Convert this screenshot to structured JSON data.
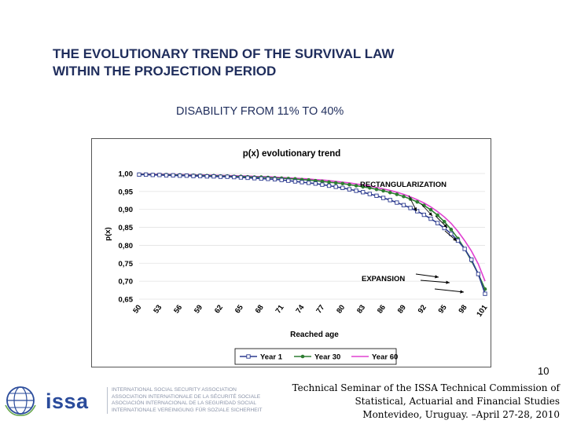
{
  "slide": {
    "title_line1": "THE EVOLUTIONARY TREND OF THE SURVIVAL LAW",
    "title_line2": "WITHIN THE PROJECTION PERIOD",
    "subtitle": "DISABILITY FROM 11% TO 40%"
  },
  "chart_data": {
    "type": "line",
    "title": "p(x) evolutionary trend",
    "xlabel": "Reached age",
    "ylabel": "p(x)",
    "xlim": [
      50,
      101
    ],
    "ylim": [
      0.65,
      1.0
    ],
    "y_ticks": [
      "1,00",
      "0,95",
      "0,90",
      "0,85",
      "0,80",
      "0,75",
      "0,70",
      "0,65"
    ],
    "x_ticks": [
      "50",
      "53",
      "56",
      "59",
      "62",
      "65",
      "68",
      "71",
      "74",
      "77",
      "80",
      "83",
      "86",
      "89",
      "92",
      "95",
      "98",
      "101"
    ],
    "legend_position": "bottom",
    "annotations": [
      "RECTANGULARIZATION",
      "EXPANSION"
    ],
    "series": [
      {
        "name": "Year 1",
        "color": "#2b3a8f",
        "marker": "square",
        "x": [
          50,
          51,
          52,
          53,
          54,
          55,
          56,
          57,
          58,
          59,
          60,
          61,
          62,
          63,
          64,
          65,
          66,
          67,
          68,
          69,
          70,
          71,
          72,
          73,
          74,
          75,
          76,
          77,
          78,
          79,
          80,
          81,
          82,
          83,
          84,
          85,
          86,
          87,
          88,
          89,
          90,
          91,
          92,
          93,
          94,
          95,
          96,
          97,
          98,
          99,
          100,
          101
        ],
        "y": [
          0.997,
          0.997,
          0.996,
          0.996,
          0.995,
          0.995,
          0.994,
          0.994,
          0.993,
          0.993,
          0.992,
          0.992,
          0.991,
          0.991,
          0.99,
          0.989,
          0.988,
          0.987,
          0.986,
          0.985,
          0.984,
          0.982,
          0.98,
          0.978,
          0.976,
          0.974,
          0.972,
          0.969,
          0.966,
          0.963,
          0.96,
          0.956,
          0.952,
          0.948,
          0.943,
          0.938,
          0.932,
          0.926,
          0.919,
          0.912,
          0.904,
          0.895,
          0.885,
          0.874,
          0.862,
          0.848,
          0.832,
          0.813,
          0.79,
          0.76,
          0.72,
          0.665
        ]
      },
      {
        "name": "Year 30",
        "color": "#2e7d32",
        "marker": "circle",
        "x": [
          50,
          51,
          52,
          53,
          54,
          55,
          56,
          57,
          58,
          59,
          60,
          61,
          62,
          63,
          64,
          65,
          66,
          67,
          68,
          69,
          70,
          71,
          72,
          73,
          74,
          75,
          76,
          77,
          78,
          79,
          80,
          81,
          82,
          83,
          84,
          85,
          86,
          87,
          88,
          89,
          90,
          91,
          92,
          93,
          94,
          95,
          96,
          97,
          98,
          99,
          100,
          101
        ],
        "y": [
          0.998,
          0.998,
          0.997,
          0.997,
          0.997,
          0.996,
          0.996,
          0.995,
          0.995,
          0.995,
          0.994,
          0.994,
          0.993,
          0.993,
          0.992,
          0.992,
          0.991,
          0.99,
          0.99,
          0.989,
          0.988,
          0.987,
          0.986,
          0.985,
          0.983,
          0.982,
          0.98,
          0.978,
          0.976,
          0.974,
          0.972,
          0.969,
          0.966,
          0.963,
          0.96,
          0.956,
          0.952,
          0.947,
          0.942,
          0.936,
          0.929,
          0.921,
          0.911,
          0.899,
          0.884,
          0.866,
          0.844,
          0.819,
          0.79,
          0.757,
          0.72,
          0.678
        ]
      },
      {
        "name": "Year 60",
        "color": "#e040d0",
        "marker": "none",
        "x": [
          50,
          51,
          52,
          53,
          54,
          55,
          56,
          57,
          58,
          59,
          60,
          61,
          62,
          63,
          64,
          65,
          66,
          67,
          68,
          69,
          70,
          71,
          72,
          73,
          74,
          75,
          76,
          77,
          78,
          79,
          80,
          81,
          82,
          83,
          84,
          85,
          86,
          87,
          88,
          89,
          90,
          91,
          92,
          93,
          94,
          95,
          96,
          97,
          98,
          99,
          100,
          101
        ],
        "y": [
          0.999,
          0.999,
          0.998,
          0.998,
          0.998,
          0.997,
          0.997,
          0.997,
          0.996,
          0.996,
          0.996,
          0.995,
          0.995,
          0.994,
          0.994,
          0.993,
          0.993,
          0.992,
          0.991,
          0.991,
          0.99,
          0.989,
          0.988,
          0.987,
          0.986,
          0.985,
          0.983,
          0.982,
          0.98,
          0.978,
          0.976,
          0.974,
          0.971,
          0.968,
          0.965,
          0.961,
          0.957,
          0.953,
          0.948,
          0.942,
          0.935,
          0.927,
          0.918,
          0.907,
          0.894,
          0.879,
          0.861,
          0.839,
          0.813,
          0.784,
          0.748,
          0.7
        ]
      }
    ]
  },
  "footer": {
    "page_number": "10",
    "line1": "Technical Seminar of the ISSA Technical Commission of",
    "line2": "Statistical, Actuarial and Financial Studies",
    "line3": "Montevideo, Uruguay. –April 27-28, 2010"
  },
  "logo": {
    "word": "issa",
    "line1": "INTERNATIONAL SOCIAL SECURITY ASSOCIATION",
    "line2": "ASSOCIATION INTERNATIONALE DE LA SÉCURITÉ SOCIALE",
    "line3": "ASOCIACIÓN INTERNACIONAL DE LA SEGURIDAD SOCIAL",
    "line4": "INTERNATIONALE VEREINIGUNG FÜR SOZIALE SICHERHEIT"
  }
}
